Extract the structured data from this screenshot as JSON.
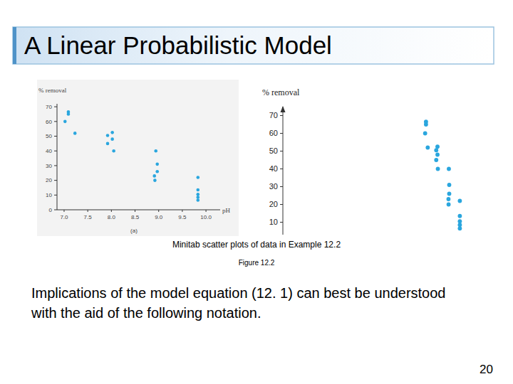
{
  "slide": {
    "title": "A Linear Probabilistic Model",
    "caption": "Minitab scatter plots of data in Example 12.2",
    "figure_label": "Figure 12.2",
    "body": "Implications of the model equation (12. 1) can best be understood with the aid of the following notation.",
    "page": 20
  },
  "chart_data": [
    {
      "type": "scatter",
      "subtitle": "(a)",
      "x_label": "pH",
      "y_label": "% removal",
      "x": [
        7.02,
        7.09,
        7.09,
        7.23,
        7.92,
        8.02,
        8.02,
        7.92,
        8.05,
        8.94,
        8.97,
        8.97,
        8.91,
        8.92,
        9.83,
        9.83,
        9.83,
        9.83,
        9.83
      ],
      "values": [
        60,
        66.5,
        65,
        52,
        50.5,
        52.5,
        48,
        45,
        40,
        40,
        31,
        26,
        23,
        20,
        22,
        13.5,
        10.5,
        8.5,
        6.5
      ],
      "xlim": [
        6.85,
        10.3
      ],
      "ylim": [
        0,
        72
      ],
      "xticks": [
        {
          "value": 7,
          "label": "7.0"
        },
        7.5,
        {
          "value": 8,
          "label": "8.0"
        },
        8.5,
        {
          "value": 9,
          "label": "9.0"
        },
        9.5,
        {
          "value": 10,
          "label": "10.0"
        }
      ],
      "yticks": [
        0,
        10,
        20,
        30,
        40,
        50,
        60,
        70
      ],
      "color": "#2aa6de",
      "marker": "circle"
    },
    {
      "type": "scatter",
      "y_label": "% removal",
      "tick_labels": "y",
      "x": [
        7.02,
        7.09,
        7.09,
        7.23,
        7.92,
        8.02,
        8.02,
        7.92,
        8.05,
        8.94,
        8.97,
        8.97,
        8.91,
        8.92,
        9.83,
        9.83,
        9.83,
        9.83,
        9.83
      ],
      "values": [
        60,
        66.5,
        65,
        52,
        50.5,
        52.5,
        48,
        45,
        40,
        40,
        31,
        26,
        23,
        20,
        22,
        13.5,
        10.5,
        8.5,
        6.5
      ],
      "xlim": [
        -4.5,
        10.5
      ],
      "ylim": [
        3,
        75
      ],
      "yticks": [
        10,
        20,
        30,
        40,
        50,
        60,
        70
      ],
      "color": "#2aa6de",
      "marker": "circle"
    }
  ]
}
